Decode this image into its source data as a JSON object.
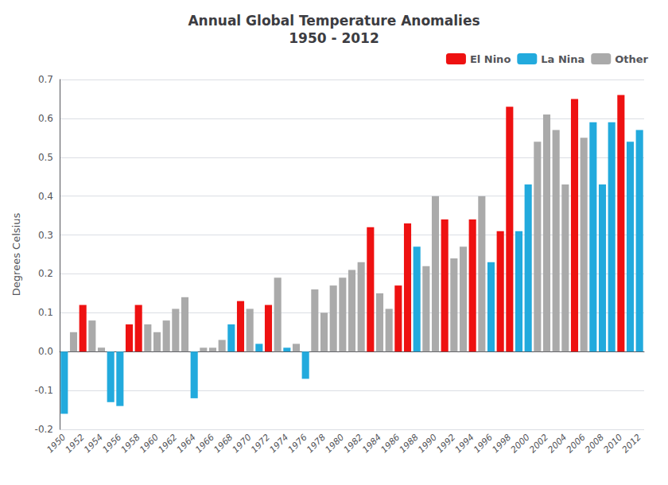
{
  "chart_data": {
    "type": "bar",
    "title": "Annual Global Temperature Anomalies",
    "subtitle": "1950 - 2012",
    "ylabel": "Degrees Celsius",
    "ylim": [
      -0.2,
      0.7
    ],
    "yticks": [
      -0.2,
      -0.1,
      {
        "value": 0.0,
        "label": "0.0"
      },
      0.1,
      0.2,
      0.3,
      0.4,
      0.5,
      0.6,
      0.7
    ],
    "grid": true,
    "legend": "upper right",
    "categories": [
      "1950",
      null,
      "1952",
      null,
      "1954",
      null,
      "1956",
      null,
      "1958",
      null,
      "1960",
      null,
      "1962",
      null,
      "1964",
      null,
      "1966",
      null,
      "1968",
      null,
      "1970",
      null,
      "1972",
      null,
      "1974",
      null,
      "1976",
      null,
      "1978",
      null,
      "1980",
      null,
      "1982",
      null,
      "1984",
      null,
      "1986",
      null,
      "1988",
      null,
      "1990",
      null,
      "1992",
      null,
      "1994",
      null,
      "1996",
      null,
      "1998",
      null,
      "2000",
      null,
      "2002",
      null,
      "2004",
      null,
      "2006",
      null,
      "2008",
      null,
      "2010",
      null,
      "2012"
    ],
    "series": [
      {
        "name": "El Nino",
        "color": "#EE1111",
        "values": [
          null,
          null,
          0.12,
          null,
          null,
          null,
          null,
          0.07,
          0.12,
          null,
          null,
          null,
          null,
          null,
          null,
          null,
          null,
          null,
          null,
          0.13,
          null,
          null,
          0.12,
          null,
          null,
          null,
          null,
          null,
          null,
          null,
          null,
          null,
          null,
          0.32,
          null,
          null,
          0.17,
          0.33,
          null,
          null,
          null,
          0.34,
          null,
          null,
          0.34,
          null,
          null,
          0.31,
          0.63,
          null,
          null,
          null,
          null,
          null,
          null,
          0.65,
          null,
          null,
          null,
          null,
          0.66,
          null,
          null
        ]
      },
      {
        "name": "La Nina",
        "color": "#22AADD",
        "values": [
          -0.16,
          null,
          null,
          null,
          null,
          -0.13,
          -0.14,
          null,
          null,
          null,
          null,
          null,
          null,
          null,
          -0.12,
          null,
          null,
          null,
          0.07,
          null,
          null,
          0.02,
          null,
          null,
          0.01,
          null,
          -0.07,
          null,
          null,
          null,
          null,
          null,
          null,
          null,
          null,
          null,
          null,
          null,
          0.27,
          null,
          null,
          null,
          null,
          null,
          null,
          null,
          0.23,
          null,
          null,
          0.31,
          0.43,
          null,
          null,
          null,
          null,
          null,
          null,
          0.59,
          0.43,
          0.59,
          null,
          0.54,
          0.57
        ]
      },
      {
        "name": "Other",
        "color": "#AAAAAA",
        "values": [
          null,
          0.05,
          null,
          0.08,
          0.01,
          null,
          null,
          null,
          null,
          0.07,
          0.05,
          0.08,
          0.11,
          0.14,
          null,
          0.01,
          0.01,
          0.03,
          null,
          null,
          0.11,
          null,
          null,
          0.19,
          null,
          0.02,
          null,
          0.16,
          0.1,
          0.17,
          0.19,
          0.21,
          0.23,
          null,
          0.15,
          0.11,
          null,
          null,
          null,
          0.22,
          0.4,
          null,
          0.24,
          0.27,
          null,
          0.4,
          null,
          null,
          null,
          null,
          null,
          0.54,
          0.61,
          0.57,
          0.43,
          null,
          0.55,
          null,
          null,
          null,
          null,
          null,
          null
        ]
      }
    ]
  }
}
